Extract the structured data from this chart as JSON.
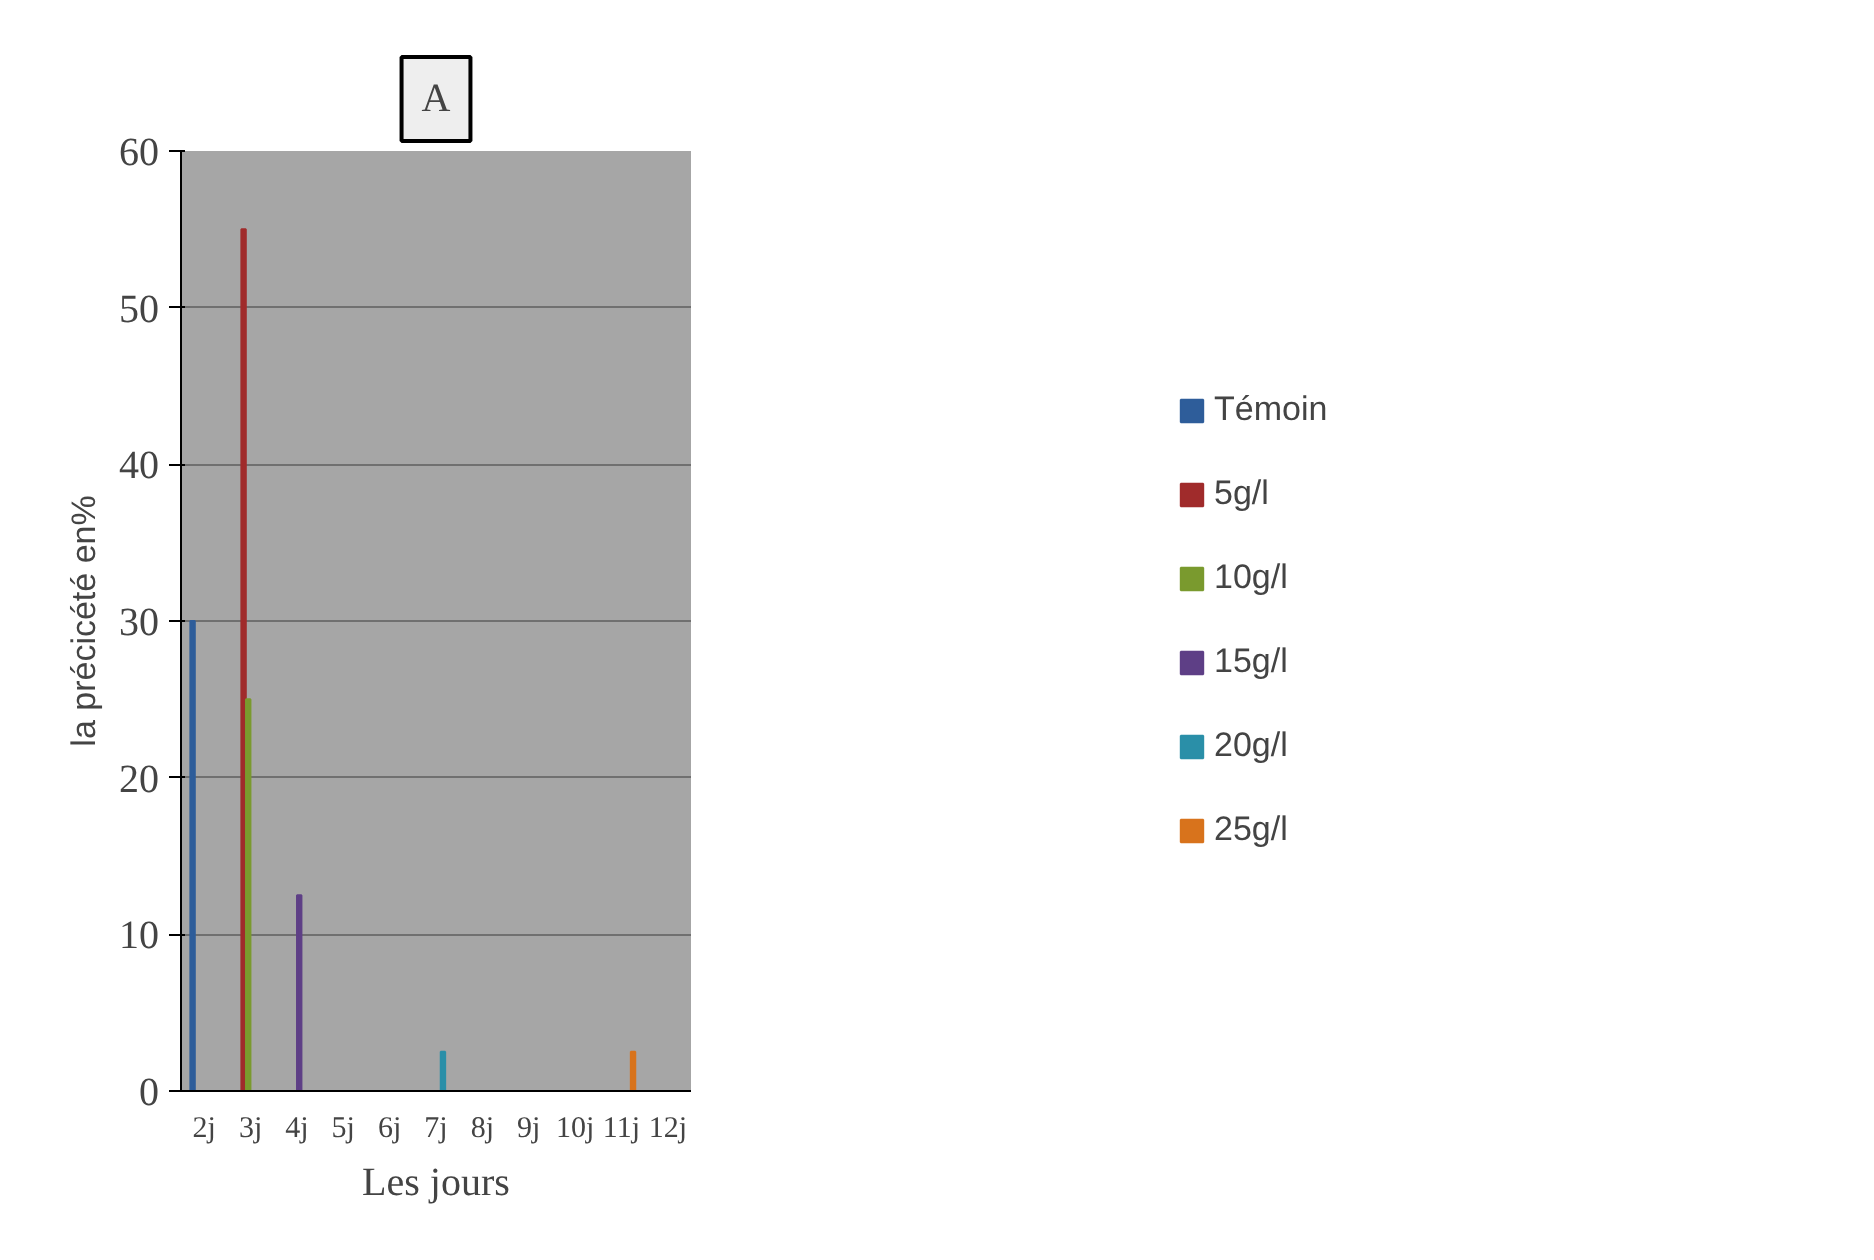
{
  "chart_data": {
    "type": "bar",
    "title": "A",
    "xlabel": "Les jours",
    "ylabel": "la précicété en%",
    "categories": [
      "2j",
      "3j",
      "4j",
      "5j",
      "6j",
      "7j",
      "8j",
      "9j",
      "10j",
      "11j",
      "12j"
    ],
    "series": [
      {
        "name": "Témoin",
        "color": "#2e5d9a",
        "values": [
          30,
          null,
          null,
          null,
          null,
          null,
          null,
          null,
          null,
          null,
          null
        ]
      },
      {
        "name": "5g/l",
        "color": "#a02b2b",
        "values": [
          null,
          55,
          null,
          null,
          null,
          null,
          null,
          null,
          null,
          null,
          null
        ]
      },
      {
        "name": "10g/l",
        "color": "#7a9a2e",
        "values": [
          null,
          25,
          null,
          null,
          null,
          null,
          null,
          null,
          null,
          null,
          null
        ]
      },
      {
        "name": "15g/l",
        "color": "#5e3f86",
        "values": [
          null,
          null,
          12.5,
          null,
          null,
          null,
          null,
          null,
          null,
          null,
          null
        ]
      },
      {
        "name": "20g/l",
        "color": "#2a8fa8",
        "values": [
          null,
          null,
          null,
          null,
          null,
          2.5,
          null,
          null,
          null,
          null,
          null
        ]
      },
      {
        "name": "25g/l",
        "color": "#d8731c",
        "values": [
          null,
          null,
          null,
          null,
          null,
          null,
          null,
          null,
          null,
          2.5,
          null
        ]
      }
    ],
    "ylim": [
      0,
      60
    ],
    "yticks": [
      0,
      10,
      20,
      30,
      40,
      50,
      60
    ],
    "grid": "y",
    "legend": "right"
  }
}
